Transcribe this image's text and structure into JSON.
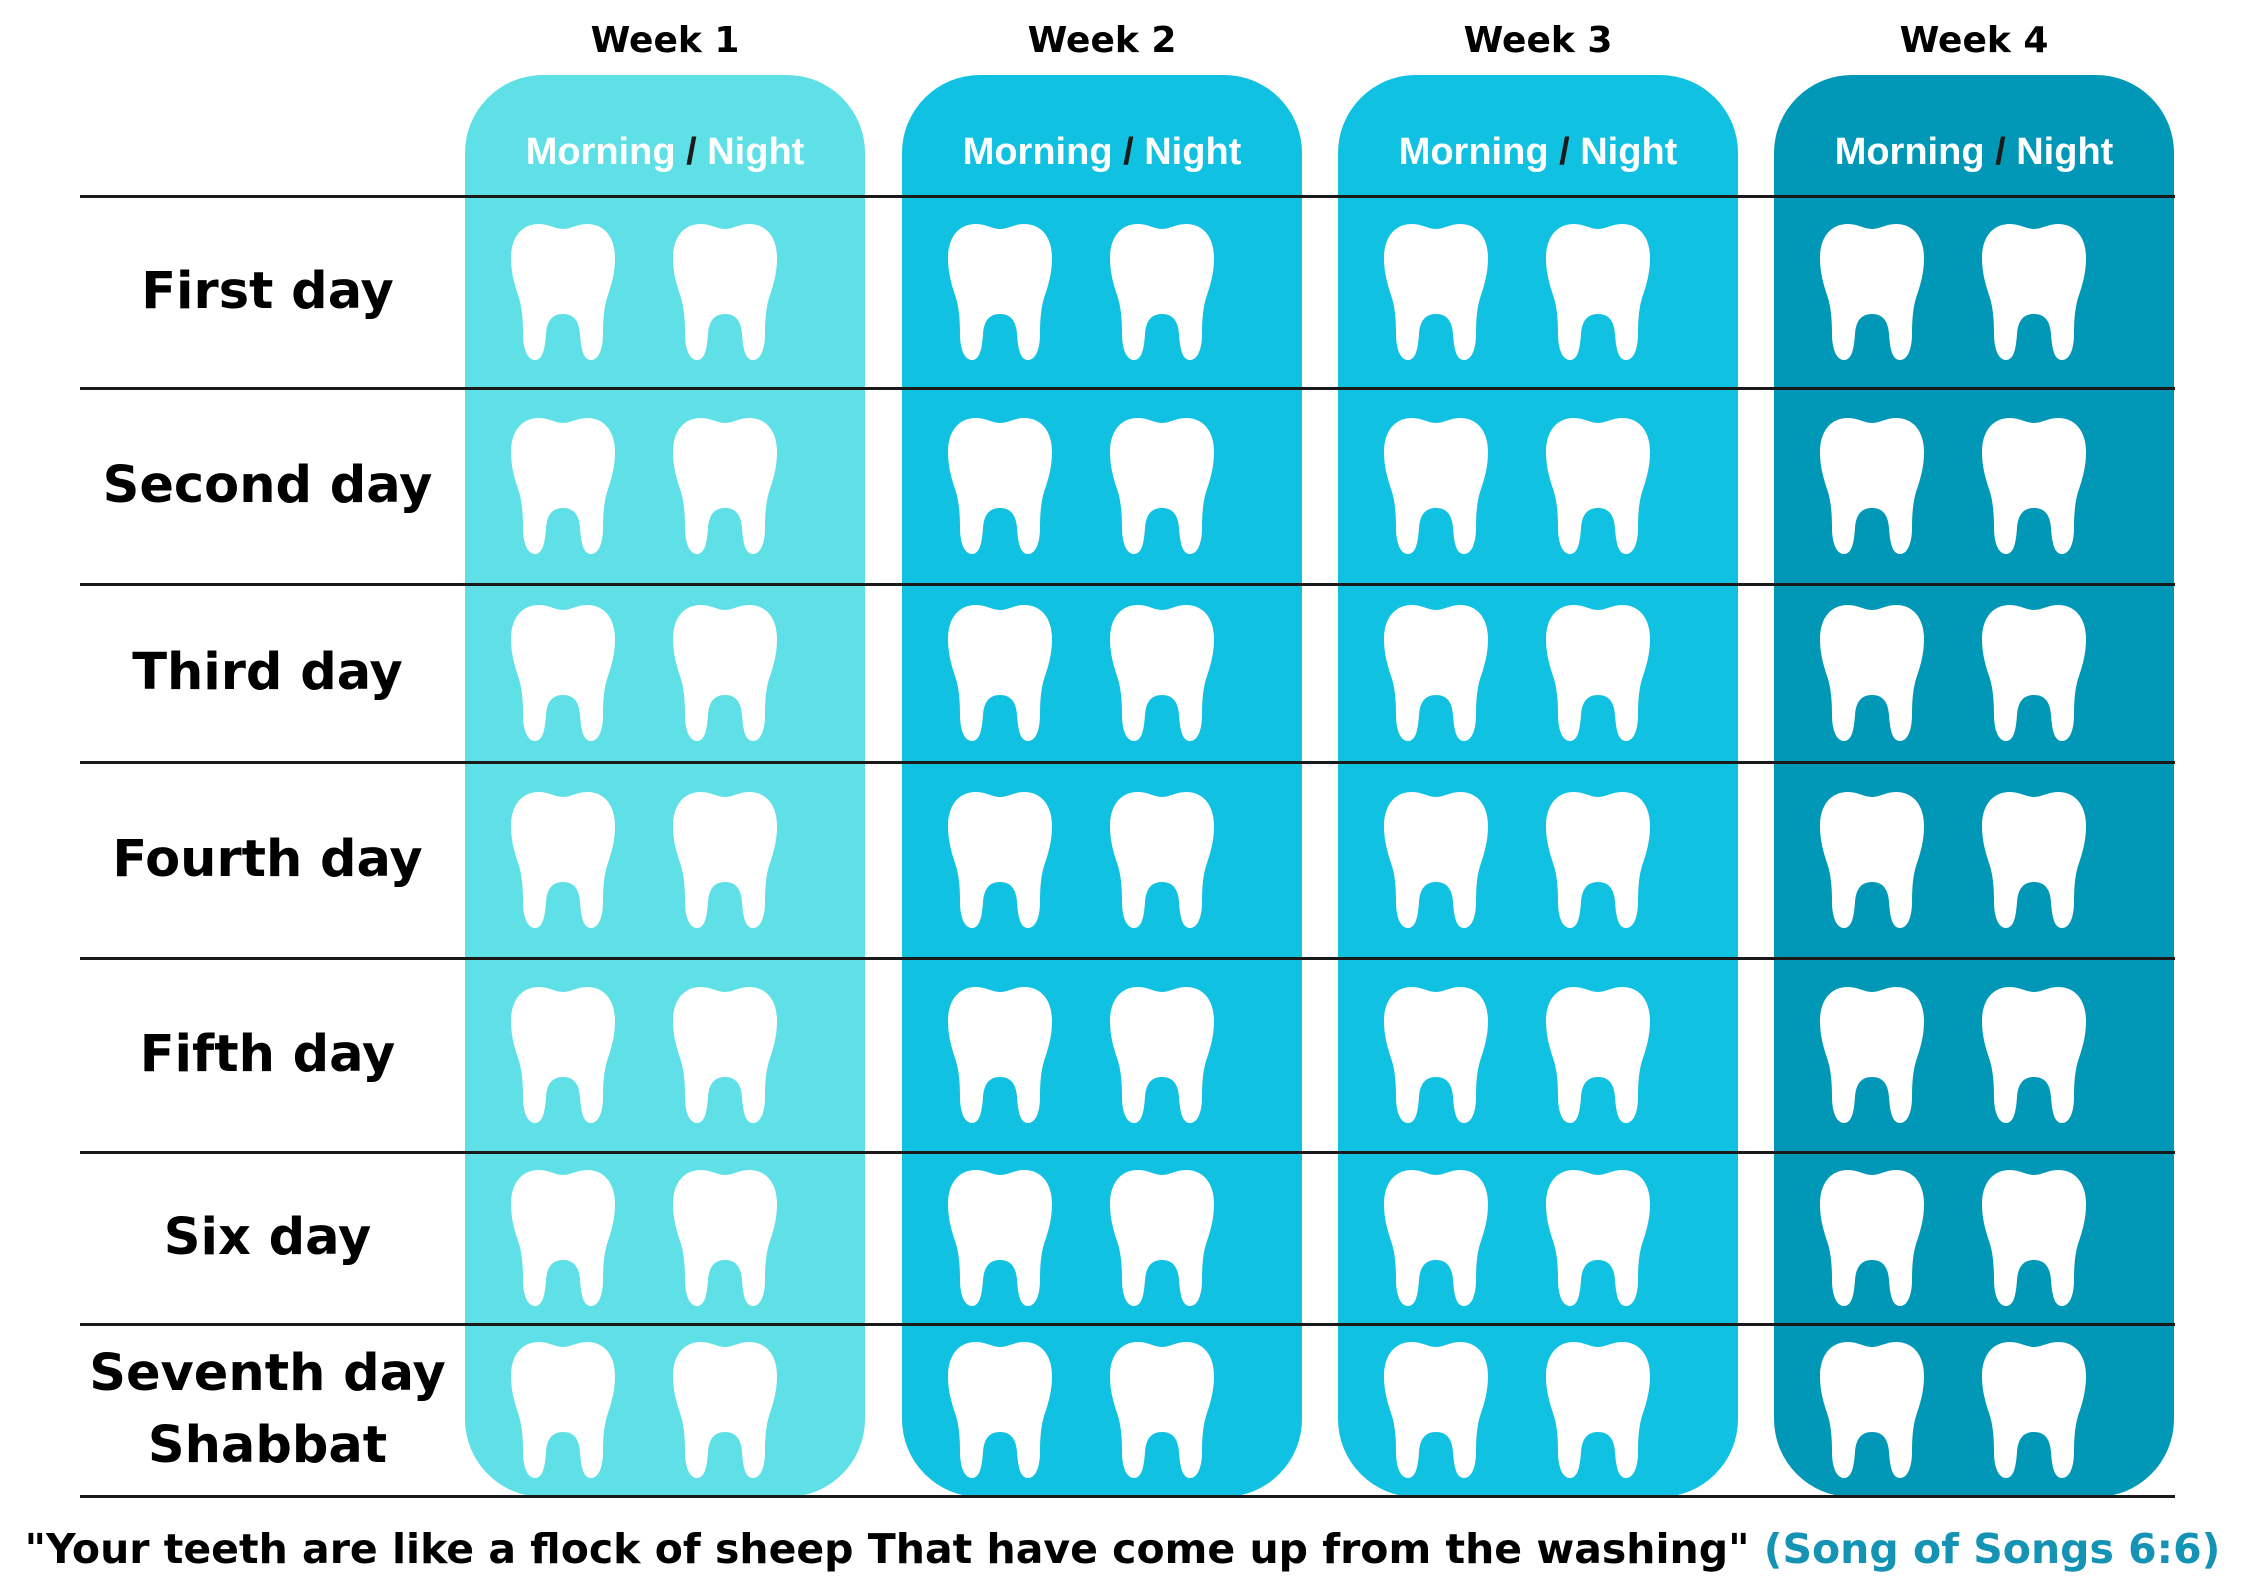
{
  "weeks": [
    {
      "title": "Week 1",
      "color": "#5ee0e6",
      "morning": "Morning",
      "slash": "/",
      "night": "Night"
    },
    {
      "title": "Week 2",
      "color": "#10c1e1",
      "morning": "Morning",
      "slash": "/",
      "night": "Night"
    },
    {
      "title": "Week 3",
      "color": "#10c1e1",
      "morning": "Morning",
      "slash": "/",
      "night": "Night"
    },
    {
      "title": "Week 4",
      "color": "#0197b6",
      "morning": "Morning",
      "slash": "/",
      "night": "Night"
    }
  ],
  "days": [
    {
      "lines": [
        "First day"
      ]
    },
    {
      "lines": [
        "Second day"
      ]
    },
    {
      "lines": [
        "Third day"
      ]
    },
    {
      "lines": [
        "Fourth day"
      ]
    },
    {
      "lines": [
        "Fifth day"
      ]
    },
    {
      "lines": [
        "Six day"
      ]
    },
    {
      "lines": [
        "Seventh day",
        "Shabbat"
      ]
    }
  ],
  "slot_icon": "tooth-icon",
  "footer": {
    "quote": "\"Your teeth are like a flock of sheep That have come up from the washing\"",
    "reference": "(Song of Songs 6:6)",
    "reference_color": "#1593b4"
  }
}
